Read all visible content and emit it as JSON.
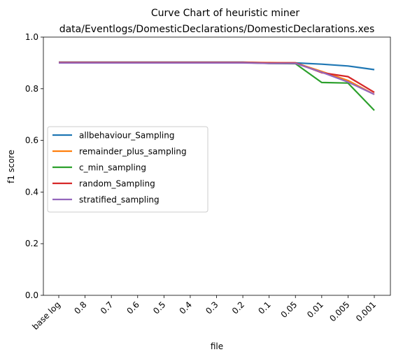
{
  "chart_data": {
    "type": "line",
    "title": "Curve Chart of heuristic miner",
    "subtitle": "data/Eventlogs/DomesticDeclarations/DomesticDeclarations.xes",
    "xlabel": "file",
    "ylabel": "f1 score",
    "ylim": [
      0.0,
      1.0
    ],
    "yticks": [
      "0.0",
      "0.2",
      "0.4",
      "0.6",
      "0.8",
      "1.0"
    ],
    "categories": [
      "base log",
      "0.8",
      "0.7",
      "0.6",
      "0.5",
      "0.4",
      "0.3",
      "0.2",
      "0.1",
      "0.05",
      "0.01",
      "0.005",
      "0.001"
    ],
    "grid": false,
    "legend_position": "center-left",
    "series": [
      {
        "name": "allbehaviour_Sampling",
        "color": "#1f77b4",
        "values": [
          0.903,
          0.903,
          0.903,
          0.903,
          0.903,
          0.903,
          0.903,
          0.903,
          0.9,
          0.9,
          0.895,
          0.888,
          0.874
        ]
      },
      {
        "name": "remainder_plus_sampling",
        "color": "#ff7f0e",
        "values": [
          0.902,
          0.902,
          0.902,
          0.902,
          0.902,
          0.902,
          0.902,
          0.902,
          0.901,
          0.9,
          0.867,
          0.832,
          0.778
        ]
      },
      {
        "name": "c_min_sampling",
        "color": "#2ca02c",
        "values": [
          0.901,
          0.901,
          0.901,
          0.901,
          0.901,
          0.901,
          0.901,
          0.901,
          0.898,
          0.897,
          0.824,
          0.822,
          0.716
        ]
      },
      {
        "name": "random_Sampling",
        "color": "#d62728",
        "values": [
          0.902,
          0.902,
          0.902,
          0.902,
          0.902,
          0.902,
          0.902,
          0.902,
          0.9,
          0.9,
          0.862,
          0.847,
          0.786
        ]
      },
      {
        "name": "stratified_sampling",
        "color": "#9467bd",
        "values": [
          0.9,
          0.9,
          0.9,
          0.9,
          0.9,
          0.9,
          0.9,
          0.9,
          0.898,
          0.898,
          0.864,
          0.826,
          0.778
        ]
      }
    ]
  }
}
